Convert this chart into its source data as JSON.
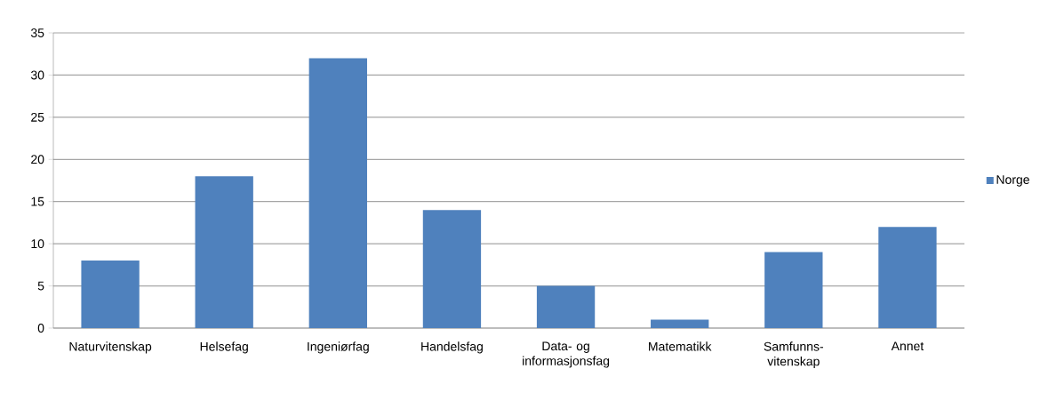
{
  "chart_data": {
    "type": "bar",
    "categories": [
      "Naturvitenskap",
      "Helsefag",
      "Ingeniørfag",
      "Handelsfag",
      "Data- og informasjonsfag",
      "Matematikk",
      "Samfunns-vitenskap",
      "Annet"
    ],
    "series": [
      {
        "name": "Norge",
        "color": "#4f81bd",
        "values": [
          8,
          18,
          32,
          14,
          5,
          1,
          9,
          12
        ]
      }
    ],
    "ylim": [
      0,
      35
    ],
    "yticks": [
      0,
      5,
      10,
      15,
      20,
      25,
      30,
      35
    ],
    "grid": "y",
    "legend": "right"
  }
}
